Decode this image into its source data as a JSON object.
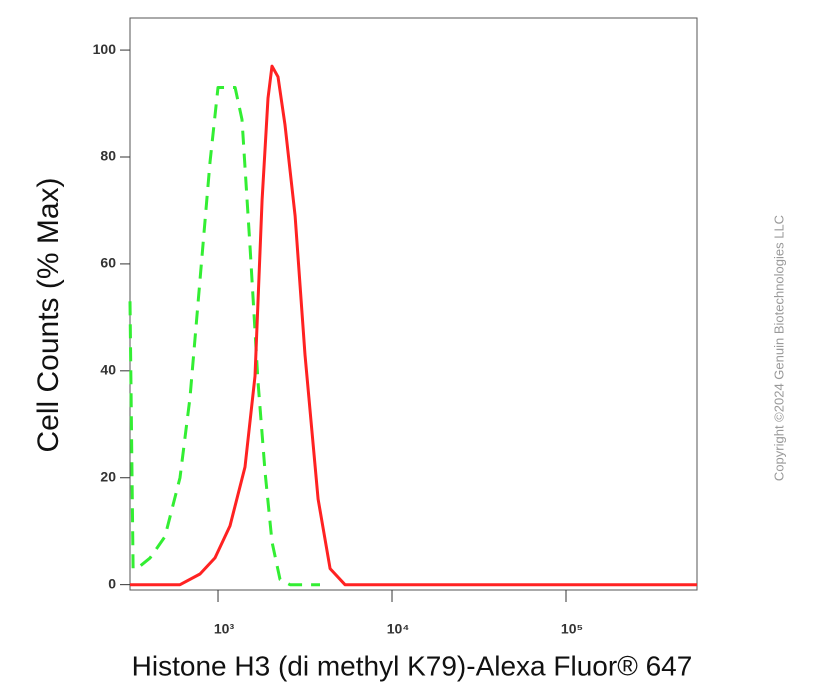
{
  "chart_data": {
    "type": "line",
    "y_label": "Cell Counts (% Max)",
    "x_label": "Histone H3 (di methyl K79)-Alexa Fluor® 647",
    "copyright": "Copyright ©2024 Genuin Biotechnologies LLC",
    "x_scale": "log",
    "xlim": [
      312,
      566000
    ],
    "ylim": [
      -1,
      106
    ],
    "xticks": [
      {
        "value": 1000,
        "label": "10³"
      },
      {
        "value": 10000,
        "label": "10⁴"
      },
      {
        "value": 100000,
        "label": "10⁵"
      }
    ],
    "yticks": [
      0,
      20,
      40,
      60,
      80,
      100
    ],
    "series": [
      {
        "color": "#33ee33",
        "dashed": true,
        "x": [
          312,
          325,
          342,
          407,
          496,
          605,
          690,
          788,
          899,
          1000,
          1097,
          1253,
          1374,
          1528,
          1698,
          1864,
          2043,
          2270,
          2594,
          3855
        ],
        "values": [
          53,
          3,
          3,
          5,
          9,
          20,
          35,
          57,
          79,
          93,
          93,
          93,
          87,
          63,
          38,
          21,
          8,
          1,
          0,
          0
        ]
      },
      {
        "color": "#ff2222",
        "dashed": false,
        "x": [
          312,
          605,
          788,
          961,
          1172,
          1430,
          1632,
          1791,
          1938,
          2043,
          2212,
          2428,
          2772,
          3162,
          3758,
          4407,
          5370,
          566000
        ],
        "values": [
          0,
          0,
          2,
          5,
          11,
          22,
          39,
          72,
          91,
          97,
          95,
          86,
          69,
          43,
          16,
          3,
          0,
          0
        ]
      }
    ]
  }
}
